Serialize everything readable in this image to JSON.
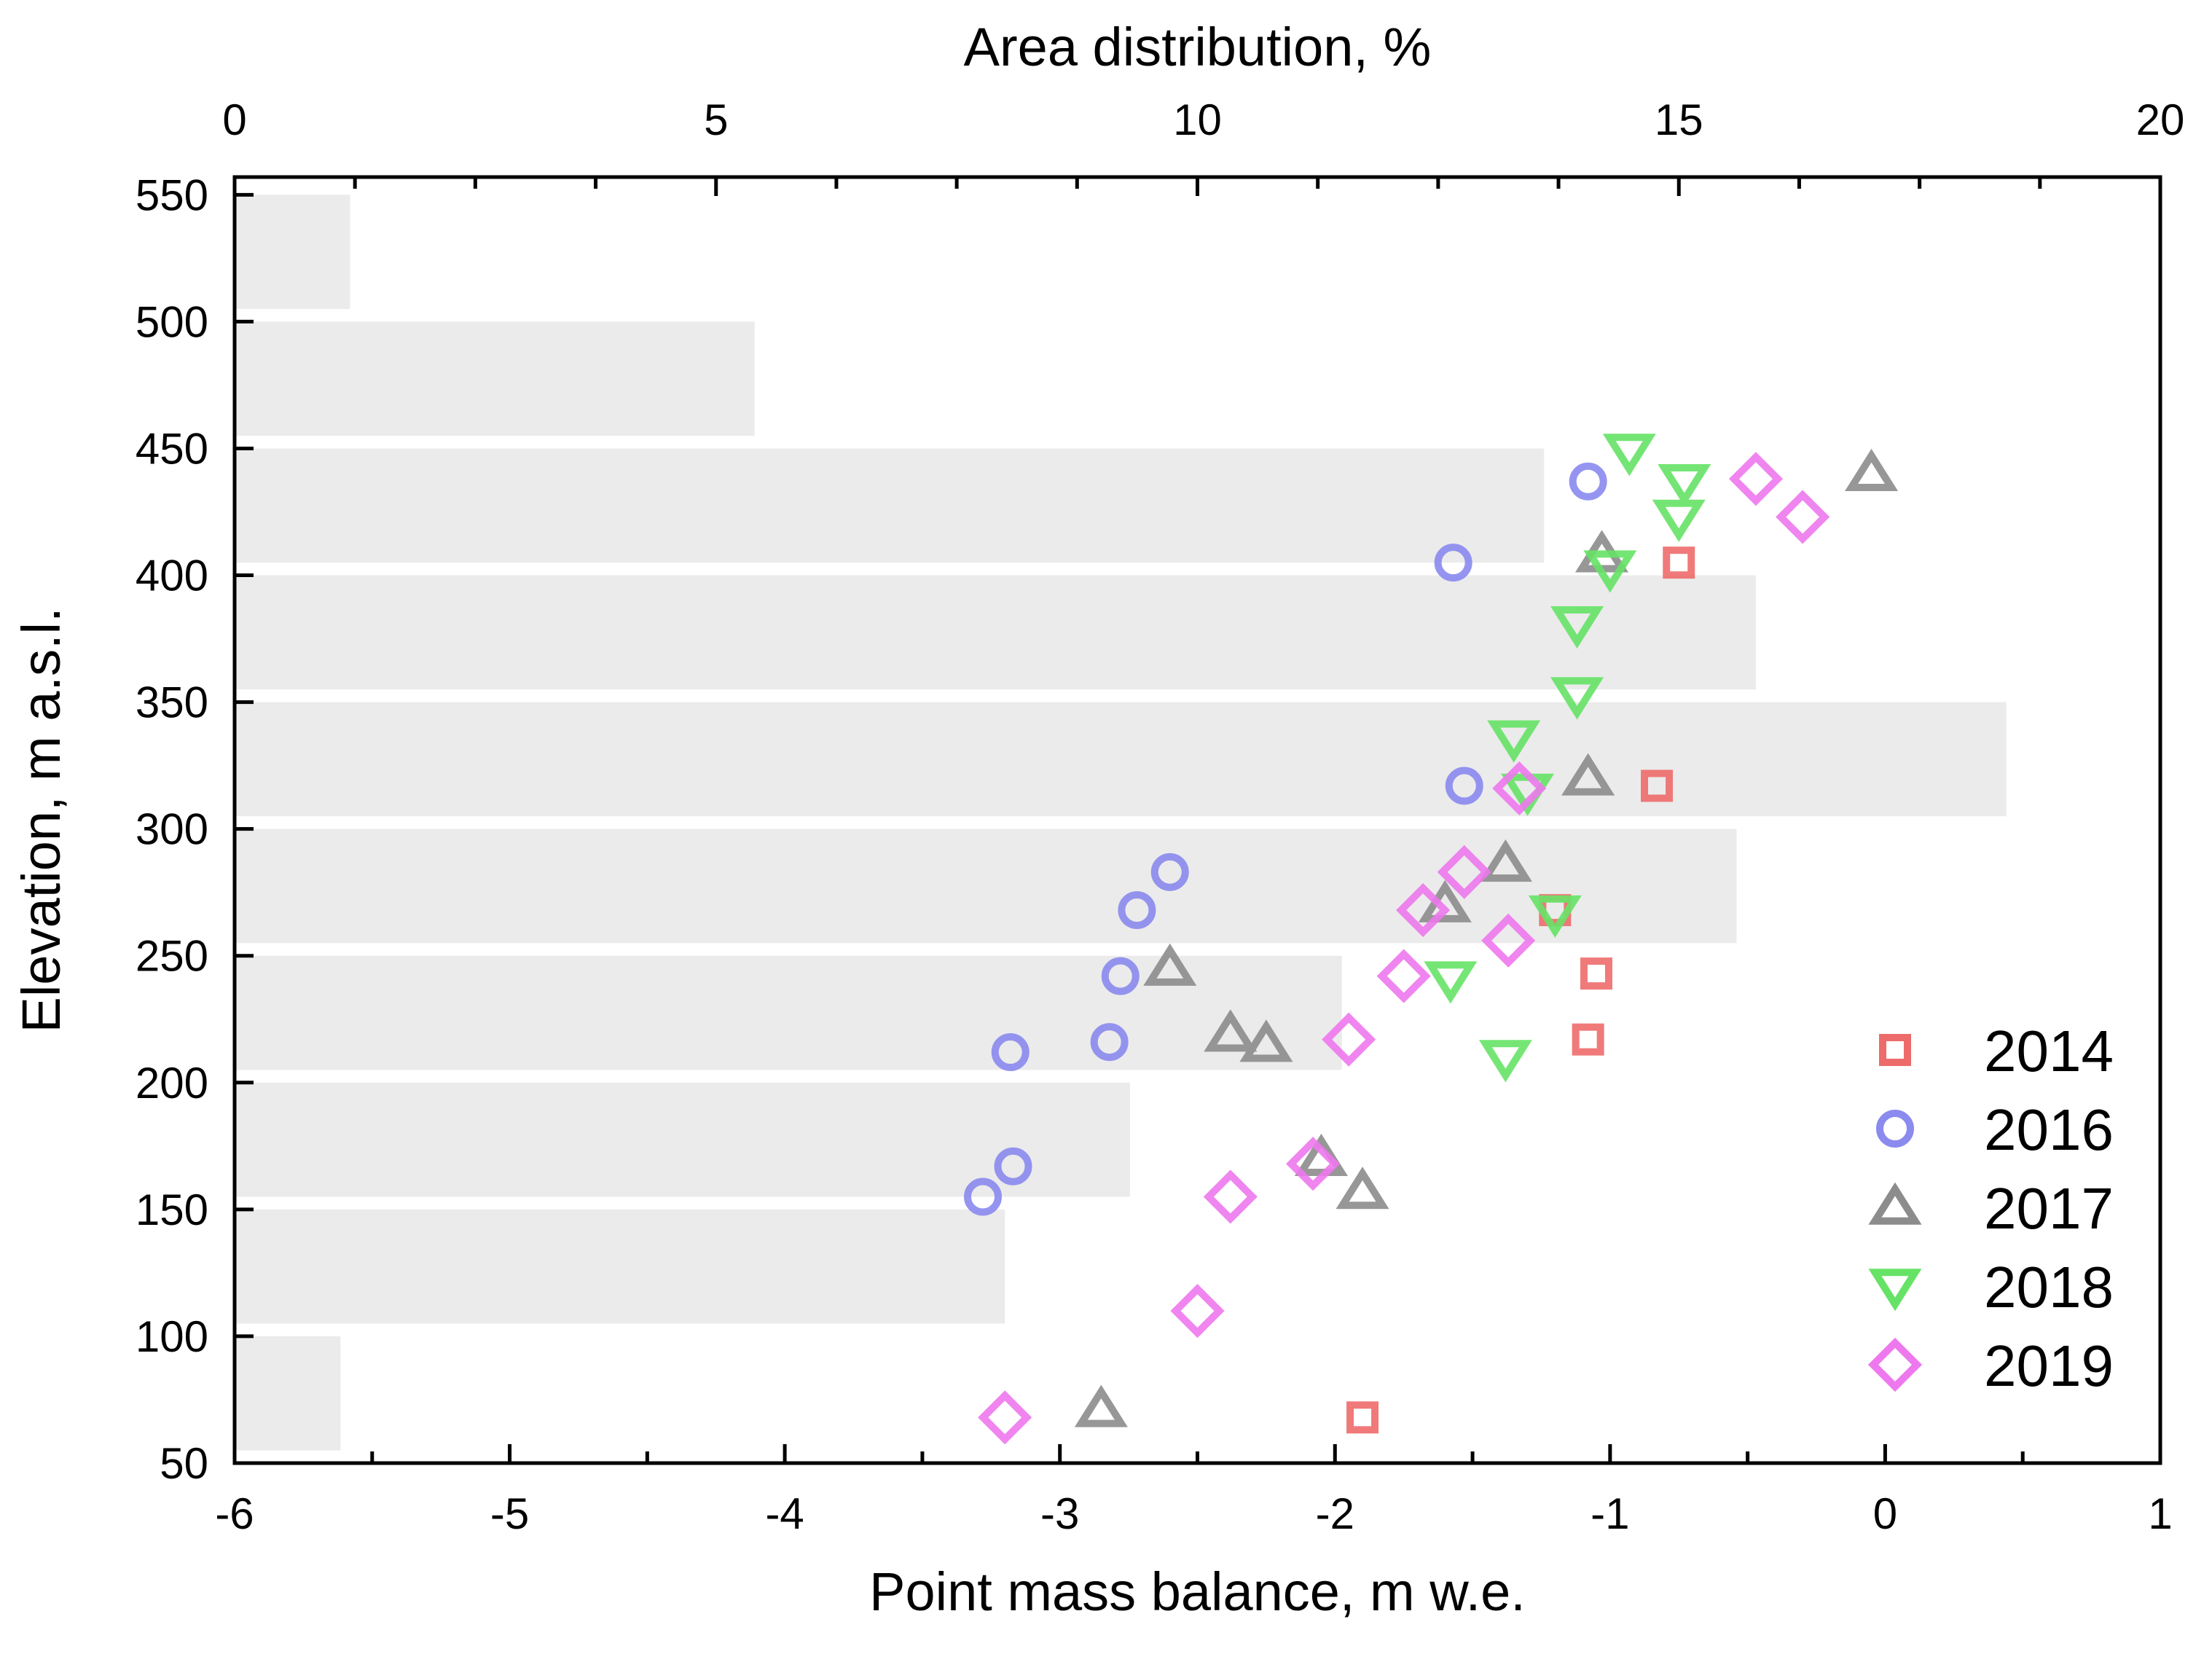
{
  "chart_data": {
    "type": "scatter",
    "title": "",
    "xlabel": "Point mass balance, m w.e.",
    "ylabel": "Elevation, m a.s.l.",
    "top_xlabel": "Area distribution, %",
    "xlim": [
      -6,
      1
    ],
    "ylim": [
      50,
      557
    ],
    "top_xlim": [
      0,
      20
    ],
    "x_ticks": [
      -6,
      -5,
      -4,
      -3,
      -2,
      -1,
      0,
      1
    ],
    "x_tick_labels": [
      "-6",
      "-5",
      "-4",
      "-3",
      "-2",
      "-1",
      "0",
      "1"
    ],
    "y_ticks": [
      50,
      100,
      150,
      200,
      250,
      300,
      350,
      400,
      450,
      500,
      550
    ],
    "y_tick_labels": [
      "50",
      "100",
      "150",
      "200",
      "250",
      "300",
      "350",
      "400",
      "450",
      "500",
      "550"
    ],
    "top_x_ticks": [
      0,
      5,
      10,
      15,
      20
    ],
    "top_x_tick_labels": [
      "0",
      "5",
      "10",
      "15",
      "20"
    ],
    "grid": false,
    "legend_position": "bottom-right",
    "area_distribution": {
      "bar_color": "#ebebeb",
      "bins": [
        {
          "lower": 55,
          "upper": 100,
          "percent": 1.1
        },
        {
          "lower": 105,
          "upper": 150,
          "percent": 8.0
        },
        {
          "lower": 155,
          "upper": 200,
          "percent": 9.3
        },
        {
          "lower": 205,
          "upper": 250,
          "percent": 11.5
        },
        {
          "lower": 255,
          "upper": 300,
          "percent": 15.6
        },
        {
          "lower": 305,
          "upper": 350,
          "percent": 18.4
        },
        {
          "lower": 355,
          "upper": 400,
          "percent": 15.8
        },
        {
          "lower": 405,
          "upper": 450,
          "percent": 13.6
        },
        {
          "lower": 455,
          "upper": 500,
          "percent": 5.4
        },
        {
          "lower": 505,
          "upper": 550,
          "percent": 1.2
        }
      ]
    },
    "series": [
      {
        "name": "2014",
        "marker": "square",
        "color": "#ee6b6b",
        "points": [
          {
            "x": -0.75,
            "y": 405
          },
          {
            "x": -0.83,
            "y": 317
          },
          {
            "x": -1.2,
            "y": 268
          },
          {
            "x": -1.05,
            "y": 243
          },
          {
            "x": -1.08,
            "y": 217
          },
          {
            "x": -1.9,
            "y": 68
          }
        ]
      },
      {
        "name": "2016",
        "marker": "circle",
        "color": "#8a8aef",
        "points": [
          {
            "x": -1.08,
            "y": 437
          },
          {
            "x": -1.57,
            "y": 405
          },
          {
            "x": -1.53,
            "y": 317
          },
          {
            "x": -2.6,
            "y": 283
          },
          {
            "x": -2.72,
            "y": 268
          },
          {
            "x": -2.78,
            "y": 242
          },
          {
            "x": -2.82,
            "y": 216
          },
          {
            "x": -3.18,
            "y": 212
          },
          {
            "x": -3.17,
            "y": 167
          },
          {
            "x": -3.28,
            "y": 155
          }
        ]
      },
      {
        "name": "2017",
        "marker": "triangle-up",
        "color": "#8c8c8c",
        "points": [
          {
            "x": -0.05,
            "y": 440
          },
          {
            "x": -1.03,
            "y": 408
          },
          {
            "x": -1.08,
            "y": 320
          },
          {
            "x": -1.38,
            "y": 286
          },
          {
            "x": -1.6,
            "y": 270
          },
          {
            "x": -2.6,
            "y": 245
          },
          {
            "x": -2.38,
            "y": 219
          },
          {
            "x": -2.25,
            "y": 215
          },
          {
            "x": -2.05,
            "y": 170
          },
          {
            "x": -1.9,
            "y": 157
          },
          {
            "x": -2.85,
            "y": 71
          }
        ]
      },
      {
        "name": "2018",
        "marker": "triangle-down",
        "color": "#66e366",
        "points": [
          {
            "x": -0.93,
            "y": 449
          },
          {
            "x": -0.73,
            "y": 437
          },
          {
            "x": -0.75,
            "y": 423
          },
          {
            "x": -1.0,
            "y": 403
          },
          {
            "x": -1.12,
            "y": 381
          },
          {
            "x": -1.12,
            "y": 353
          },
          {
            "x": -1.35,
            "y": 336
          },
          {
            "x": -1.3,
            "y": 315
          },
          {
            "x": -1.2,
            "y": 267
          },
          {
            "x": -1.58,
            "y": 241
          },
          {
            "x": -1.38,
            "y": 210
          }
        ]
      },
      {
        "name": "2019",
        "marker": "diamond",
        "color": "#ee78ee",
        "points": [
          {
            "x": -0.47,
            "y": 438
          },
          {
            "x": -0.3,
            "y": 423
          },
          {
            "x": -1.33,
            "y": 316
          },
          {
            "x": -1.53,
            "y": 283
          },
          {
            "x": -1.68,
            "y": 268
          },
          {
            "x": -1.37,
            "y": 256
          },
          {
            "x": -1.75,
            "y": 242
          },
          {
            "x": -1.95,
            "y": 217
          },
          {
            "x": -2.08,
            "y": 168
          },
          {
            "x": -2.38,
            "y": 155
          },
          {
            "x": -2.5,
            "y": 110
          },
          {
            "x": -3.2,
            "y": 68
          }
        ]
      }
    ]
  }
}
